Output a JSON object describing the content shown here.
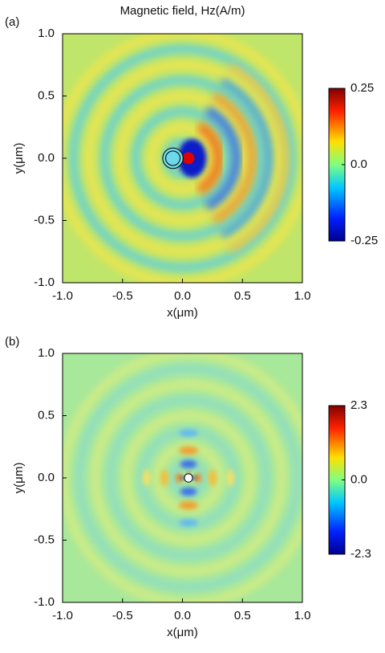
{
  "chart_data": [
    {
      "type": "heatmap",
      "panel": "(a)",
      "title": "Magnetic field, Hz(A/m)",
      "xlabel": "x(μm)",
      "ylabel": "y(μm)",
      "xlim": [
        -1,
        1
      ],
      "ylim": [
        -1,
        1
      ],
      "xticks": [
        {
          "value": -1,
          "label": "-1.0"
        },
        -0.5,
        {
          "value": 0,
          "label": "0.0"
        },
        0.5,
        {
          "value": 1,
          "label": "1.0"
        }
      ],
      "yticks": [
        {
          "value": -1,
          "label": "-1.0"
        },
        -0.5,
        {
          "value": 0,
          "label": "0.0"
        },
        0.5,
        {
          "value": 1,
          "label": "1.0"
        }
      ],
      "clim": [
        -0.25,
        0.25
      ],
      "cticks": [
        -0.25,
        {
          "value": 0,
          "label": "0.0"
        },
        0.25
      ]
    },
    {
      "type": "heatmap",
      "panel": "(b)",
      "xlabel": "x(μm)",
      "ylabel": "y(μm)",
      "xlim": [
        -1,
        1
      ],
      "ylim": [
        -1,
        1
      ],
      "xticks": [
        {
          "value": -1,
          "label": "-1.0"
        },
        -0.5,
        {
          "value": 0,
          "label": "0.0"
        },
        0.5,
        {
          "value": 1,
          "label": "1.0"
        }
      ],
      "yticks": [
        {
          "value": -1,
          "label": "-1.0"
        },
        -0.5,
        {
          "value": 0,
          "label": "0.0"
        },
        0.5,
        {
          "value": 1,
          "label": "1.0"
        }
      ],
      "clim": [
        -2.3,
        2.3
      ],
      "cticks": [
        -2.3,
        {
          "value": 0,
          "label": "0.0"
        },
        2.3
      ]
    }
  ]
}
